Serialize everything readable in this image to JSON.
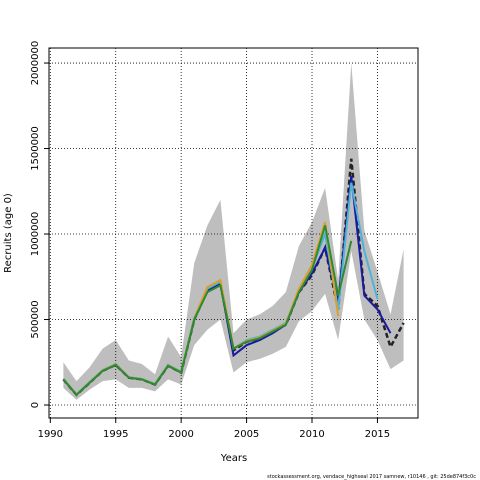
{
  "chart_data": {
    "type": "line",
    "xlabel": "Years",
    "ylabel": "Recruits (age 0)",
    "footnote": "stockassessment.org, vendace_highseal 2017 samnew, r10146 , git: 25de874f3c0c",
    "grid": true,
    "xlim": [
      1989.9,
      2018.1
    ],
    "ylim": [
      -76000,
      2088000
    ],
    "xticks": [
      1990,
      1995,
      2000,
      2005,
      2010,
      2015
    ],
    "yticks": [
      0,
      500000,
      1000000,
      1500000,
      2000000
    ],
    "x": [
      1991,
      1992,
      1993,
      1994,
      1995,
      1996,
      1997,
      1998,
      1999,
      2000,
      2001,
      2002,
      2003,
      2004,
      2005,
      2006,
      2007,
      2008,
      2009,
      2010,
      2011,
      2012,
      2013,
      2014,
      2015,
      2016,
      2017
    ],
    "band": {
      "color": "#bebebe",
      "lower": [
        100000,
        30000,
        90000,
        140000,
        150000,
        100000,
        100000,
        80000,
        150000,
        120000,
        350000,
        440000,
        500000,
        190000,
        250000,
        270000,
        300000,
        340000,
        490000,
        550000,
        650000,
        380000,
        900000,
        500000,
        380000,
        210000,
        260000
      ],
      "upper": [
        250000,
        140000,
        220000,
        330000,
        380000,
        260000,
        240000,
        180000,
        400000,
        280000,
        830000,
        1050000,
        1200000,
        420000,
        500000,
        530000,
        580000,
        660000,
        930000,
        1070000,
        1270000,
        730000,
        2000000,
        1020000,
        780000,
        530000,
        910000
      ]
    },
    "series": [
      {
        "color": "#222222",
        "dashed": true,
        "values": [
          150000,
          60000,
          130000,
          200000,
          235000,
          160000,
          150000,
          120000,
          230000,
          190000,
          500000,
          670000,
          710000,
          320000,
          370000,
          390000,
          430000,
          470000,
          660000,
          760000,
          920000,
          560000,
          1440000,
          650000,
          580000,
          340000,
          480000
        ]
      },
      {
        "color": "#1a1aa0",
        "dashed": false,
        "values": [
          150000,
          60000,
          130000,
          200000,
          235000,
          160000,
          150000,
          120000,
          230000,
          190000,
          500000,
          670000,
          710000,
          290000,
          350000,
          380000,
          420000,
          470000,
          660000,
          770000,
          920000,
          600000,
          1340000,
          640000,
          560000,
          420000,
          null
        ]
      },
      {
        "color": "#4fb3d9",
        "dashed": false,
        "values": [
          155000,
          62000,
          135000,
          205000,
          240000,
          162000,
          152000,
          122000,
          235000,
          195000,
          510000,
          680000,
          720000,
          330000,
          380000,
          400000,
          440000,
          480000,
          670000,
          800000,
          1000000,
          560000,
          1300000,
          900000,
          620000,
          null,
          null
        ]
      },
      {
        "color": "#d9a030",
        "dashed": false,
        "values": [
          152000,
          61000,
          132000,
          203000,
          238000,
          161000,
          151000,
          121000,
          232000,
          192000,
          505000,
          690000,
          730000,
          330000,
          375000,
          395000,
          435000,
          475000,
          680000,
          820000,
          1070000,
          520000,
          null,
          null,
          null,
          null,
          null
        ]
      },
      {
        "color": "#2e8b2e",
        "dashed": false,
        "values": [
          150000,
          60000,
          130000,
          200000,
          235000,
          160000,
          150000,
          120000,
          230000,
          190000,
          500000,
          660000,
          700000,
          330000,
          370000,
          390000,
          430000,
          470000,
          660000,
          790000,
          1050000,
          640000,
          960000,
          null,
          null,
          null,
          null
        ]
      }
    ]
  }
}
